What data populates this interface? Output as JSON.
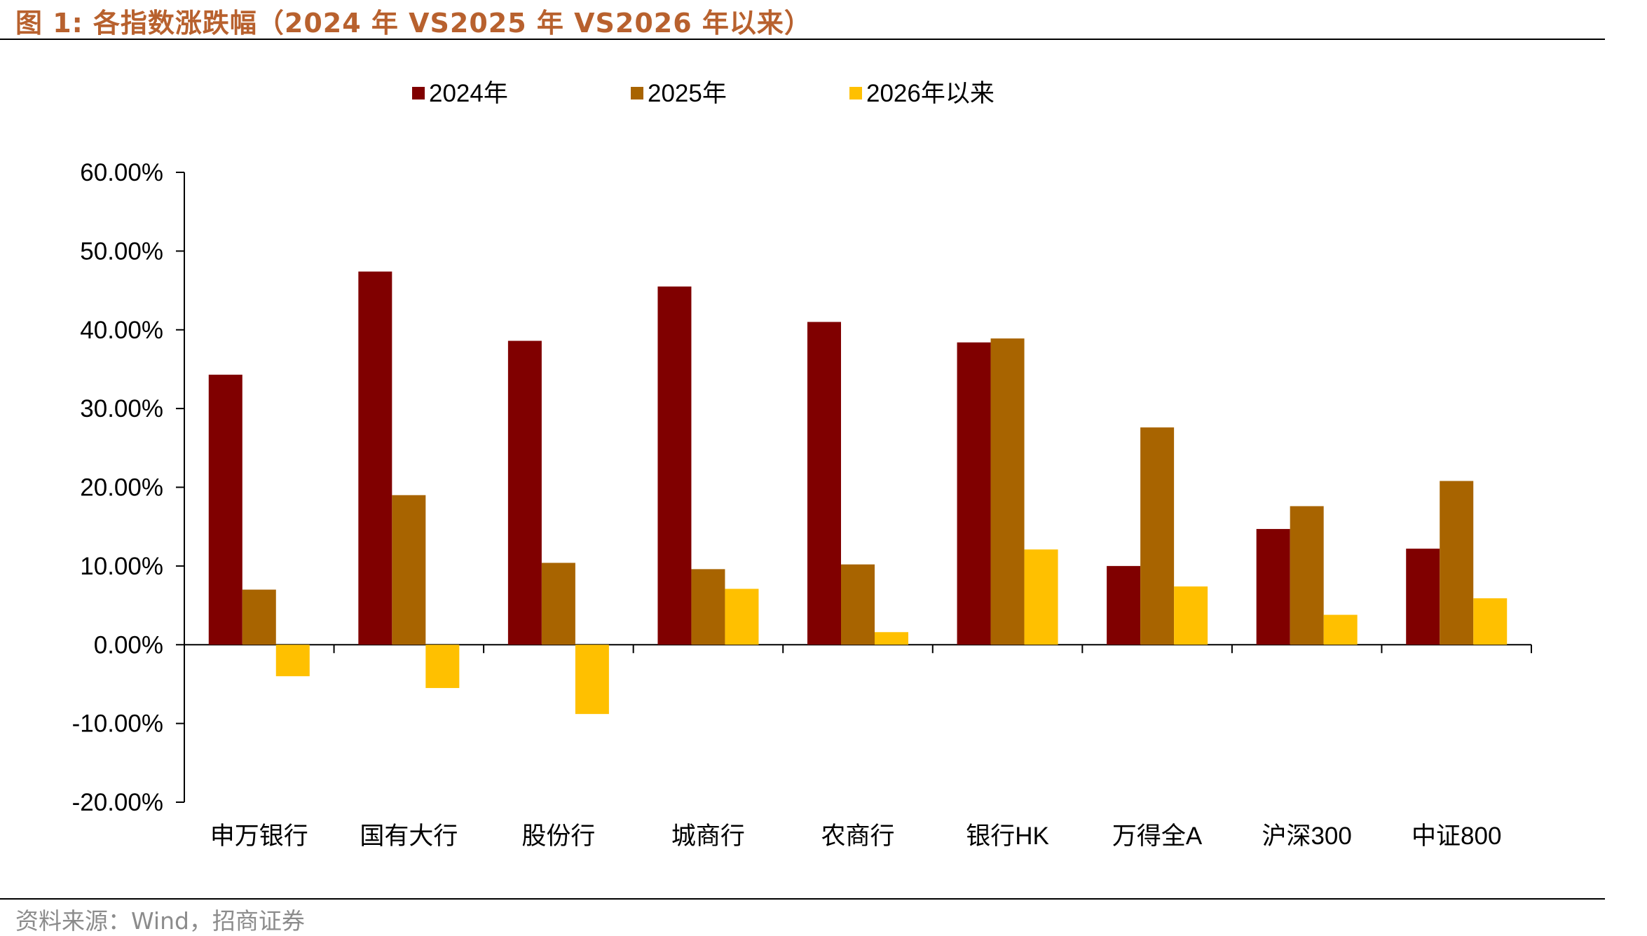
{
  "figure": {
    "label": "图 1:",
    "title": "各指数涨跌幅（2024 年 VS2025 年 VS2026 年以来）"
  },
  "source": "资料来源：Wind，招商证券",
  "colors": {
    "title": "#B8612E",
    "series_2024": "#800000",
    "series_2025": "#A86400",
    "series_2026": "#FFC000",
    "axis": "#000000",
    "source_text": "#8c8c8c"
  },
  "chart_data": {
    "type": "bar",
    "categories": [
      "申万银行",
      "国有大行",
      "股份行",
      "城商行",
      "农商行",
      "银行HK",
      "万得全A",
      "沪深300",
      "中证800"
    ],
    "series": [
      {
        "name": "2024年",
        "color": "#800000",
        "values": [
          34.3,
          47.4,
          38.6,
          45.5,
          41.0,
          38.4,
          10.0,
          14.7,
          12.2
        ]
      },
      {
        "name": "2025年",
        "color": "#A86400",
        "values": [
          7.0,
          19.0,
          10.4,
          9.6,
          10.2,
          38.9,
          27.6,
          17.6,
          20.8
        ]
      },
      {
        "name": "2026年以来",
        "color": "#FFC000",
        "values": [
          -4.0,
          -5.5,
          -8.8,
          7.1,
          1.6,
          12.1,
          7.4,
          3.8,
          5.9
        ]
      }
    ],
    "yticks": [
      "60.00%",
      "50.00%",
      "40.00%",
      "30.00%",
      "20.00%",
      "10.00%",
      "0.00%",
      "-10.00%",
      "-20.00%"
    ],
    "ylim": [
      -20,
      60
    ],
    "ytick_step": 10,
    "legend_position": "top",
    "grid": false
  }
}
